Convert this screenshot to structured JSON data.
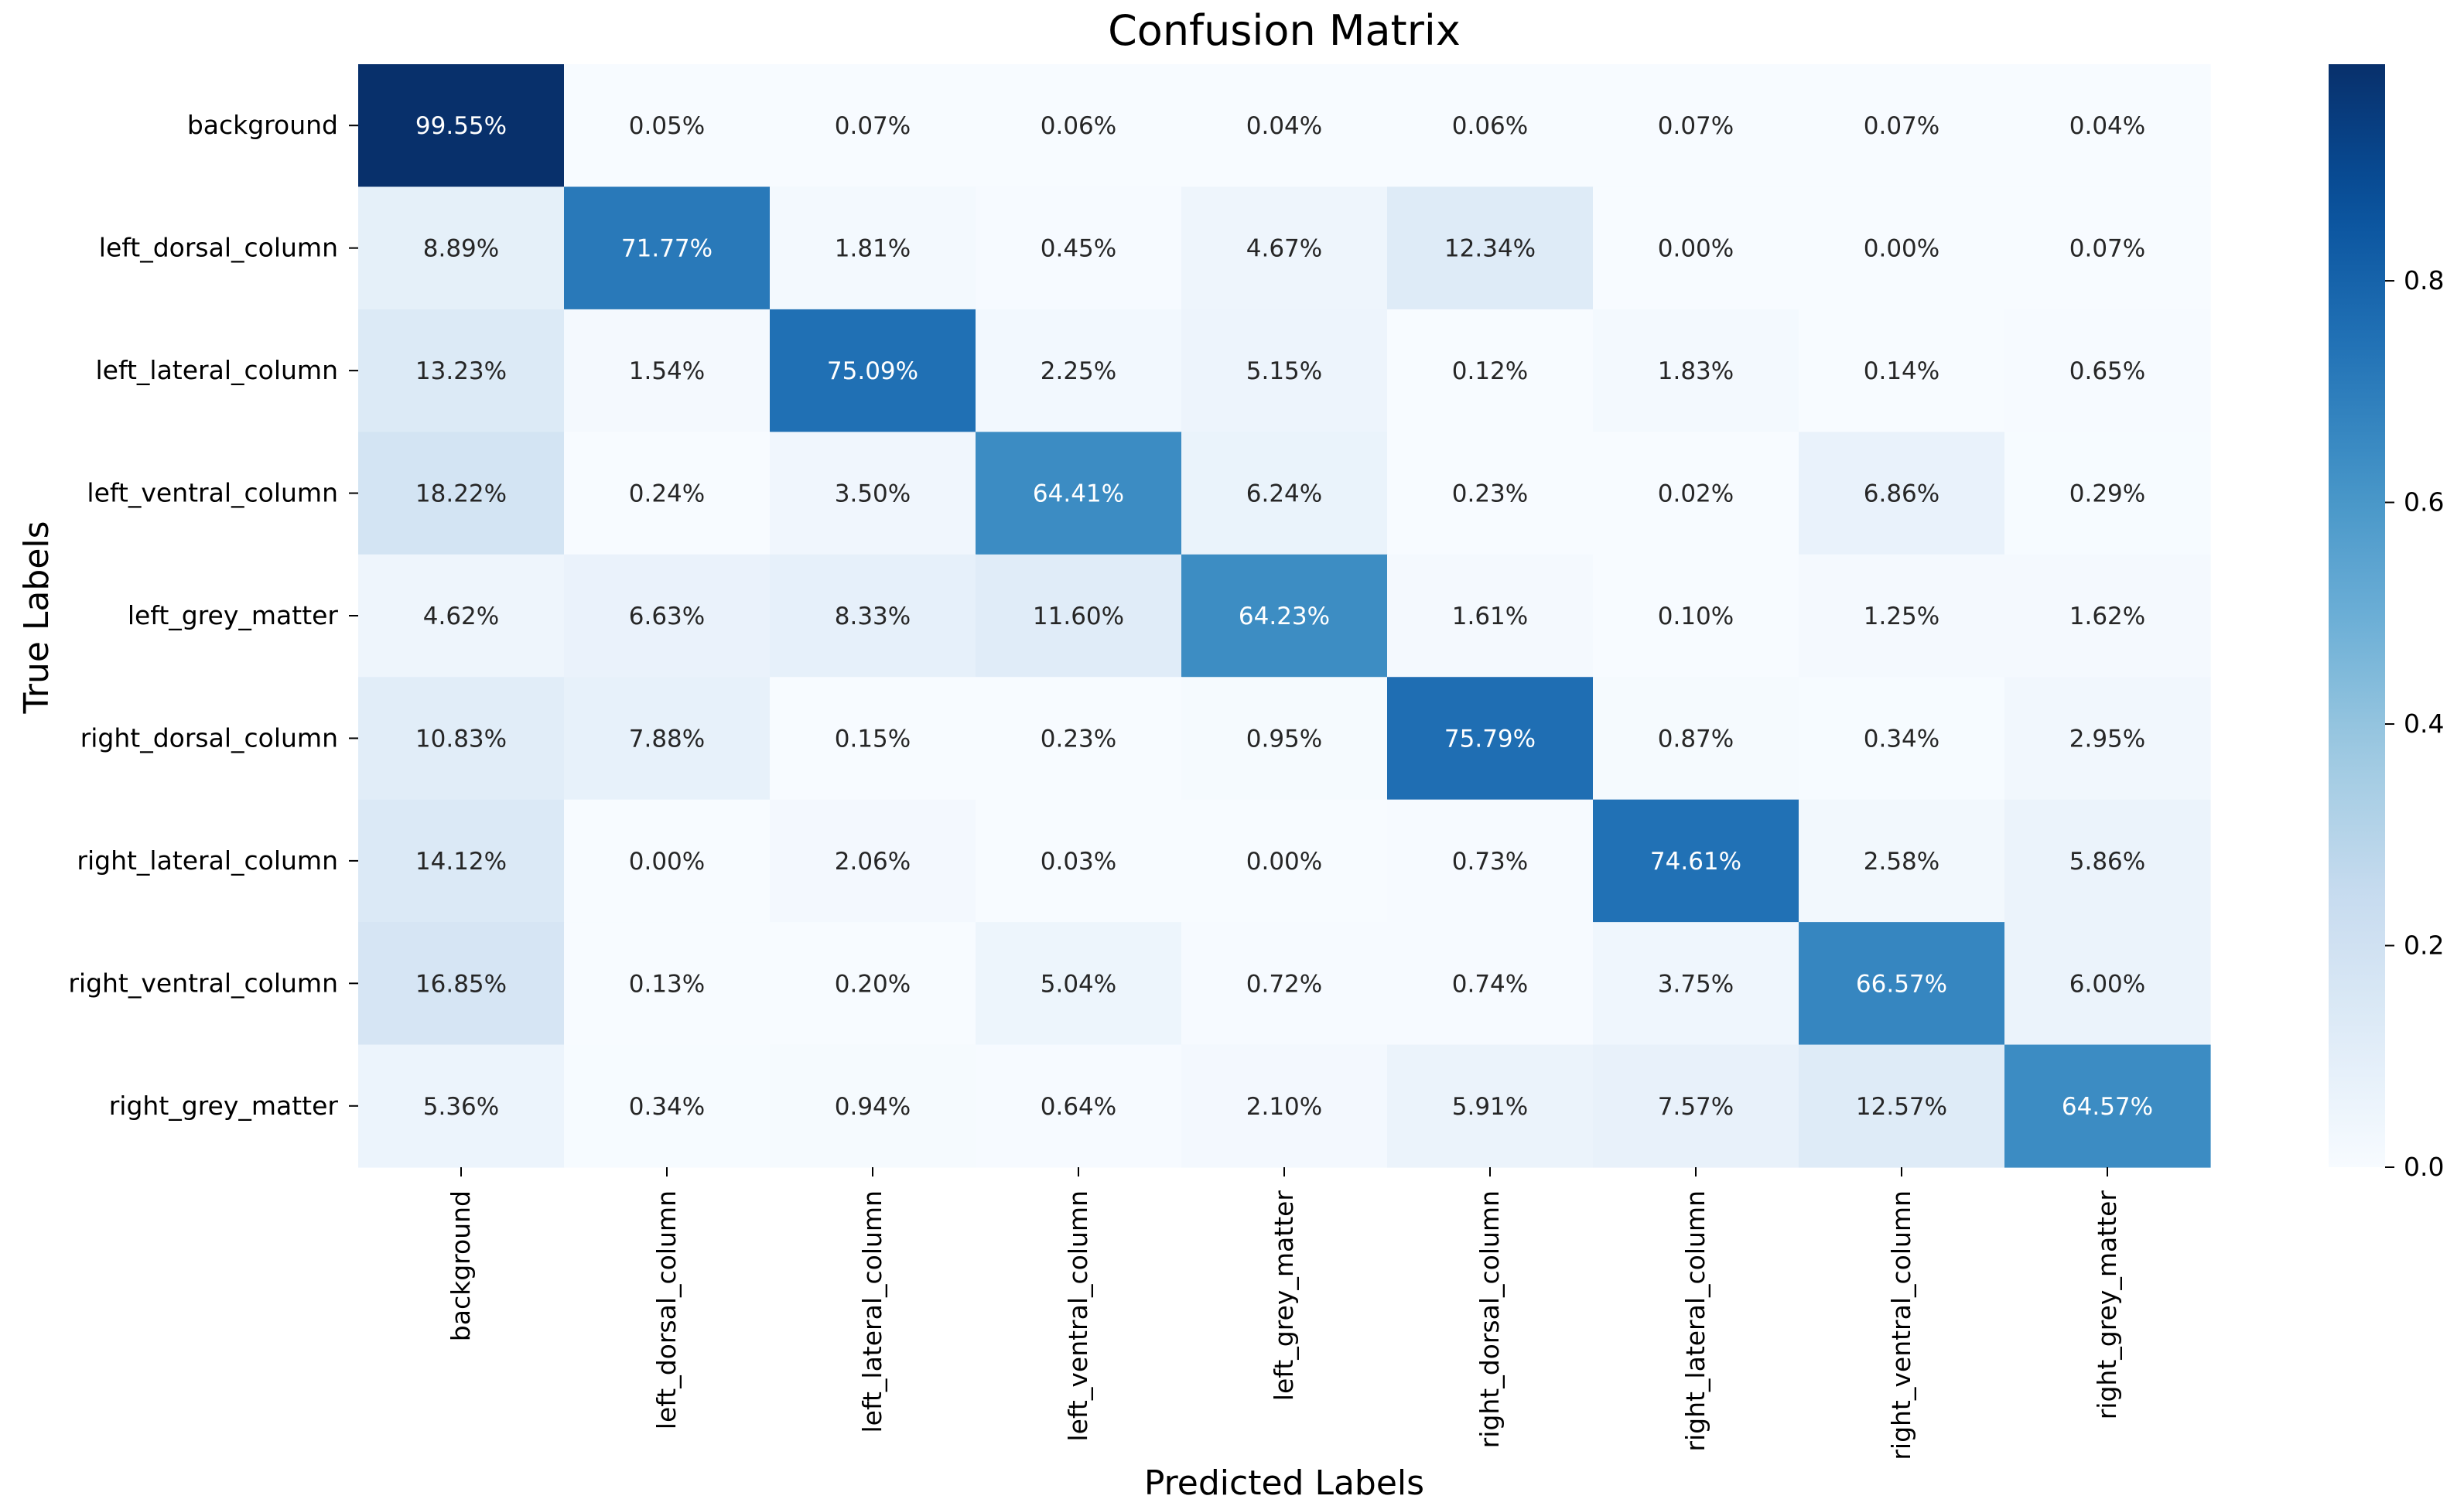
{
  "chart_data": {
    "type": "heatmap",
    "title": "Confusion Matrix",
    "xlabel": "Predicted Labels",
    "ylabel": "True Labels",
    "value_format": "percent_2dp",
    "labels": [
      "background",
      "left_dorsal_column",
      "left_lateral_column",
      "left_ventral_column",
      "left_grey_matter",
      "right_dorsal_column",
      "right_lateral_column",
      "right_ventral_column",
      "right_grey_matter"
    ],
    "matrix": [
      [
        99.55,
        0.05,
        0.07,
        0.06,
        0.04,
        0.06,
        0.07,
        0.07,
        0.04
      ],
      [
        8.89,
        71.77,
        1.81,
        0.45,
        4.67,
        12.34,
        0.0,
        0.0,
        0.07
      ],
      [
        13.23,
        1.54,
        75.09,
        2.25,
        5.15,
        0.12,
        1.83,
        0.14,
        0.65
      ],
      [
        18.22,
        0.24,
        3.5,
        64.41,
        6.24,
        0.23,
        0.02,
        6.86,
        0.29
      ],
      [
        4.62,
        6.63,
        8.33,
        11.6,
        64.23,
        1.61,
        0.1,
        1.25,
        1.62
      ],
      [
        10.83,
        7.88,
        0.15,
        0.23,
        0.95,
        75.79,
        0.87,
        0.34,
        2.95
      ],
      [
        14.12,
        0.0,
        2.06,
        0.03,
        0.0,
        0.73,
        74.61,
        2.58,
        5.86
      ],
      [
        16.85,
        0.13,
        0.2,
        5.04,
        0.72,
        0.74,
        3.75,
        66.57,
        6.0
      ],
      [
        5.36,
        0.34,
        0.94,
        0.64,
        2.1,
        5.91,
        7.57,
        12.57,
        64.57
      ]
    ],
    "colorbar": {
      "colormap": "Blues",
      "vmin": 0.0,
      "vmax": 0.9955,
      "ticks": [
        0.0,
        0.2,
        0.4,
        0.6,
        0.8
      ],
      "tick_labels": [
        "0.0",
        "0.2",
        "0.4",
        "0.6",
        "0.8"
      ]
    }
  }
}
